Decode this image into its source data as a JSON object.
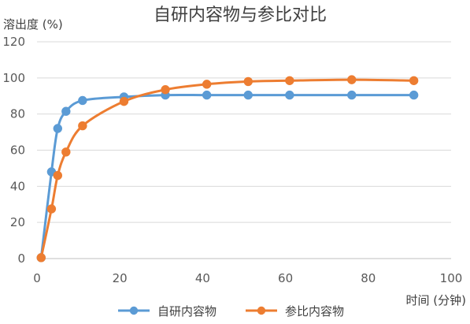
{
  "chart_data": {
    "type": "line",
    "title": "自研内容物与参比对比",
    "ylabel": "溶出度 (%)",
    "xlabel": "时间 (分钟)",
    "xlim": [
      0,
      100
    ],
    "ylim": [
      0,
      120
    ],
    "xticks": [
      0,
      20,
      40,
      60,
      80,
      100
    ],
    "yticks": [
      0,
      20,
      40,
      60,
      80,
      100,
      120
    ],
    "grid": "horizontal",
    "legend_position": "bottom",
    "smooth": true,
    "series": [
      {
        "name": "自研内容物",
        "color": "#5B9BD5",
        "x": [
          1,
          3.5,
          5,
          7,
          11,
          21,
          31,
          41,
          51,
          61,
          76,
          91
        ],
        "y": [
          0.5,
          48,
          72,
          81.5,
          87.5,
          89.5,
          90.5,
          90.5,
          90.5,
          90.5,
          90.5,
          90.5
        ]
      },
      {
        "name": "参比内容物",
        "color": "#ED7D31",
        "x": [
          1,
          3.5,
          5,
          7,
          11,
          21,
          31,
          41,
          51,
          61,
          76,
          91
        ],
        "y": [
          0.5,
          27.5,
          46,
          59,
          73.5,
          87,
          93.5,
          96.5,
          98,
          98.5,
          99,
          98.5
        ]
      }
    ]
  }
}
